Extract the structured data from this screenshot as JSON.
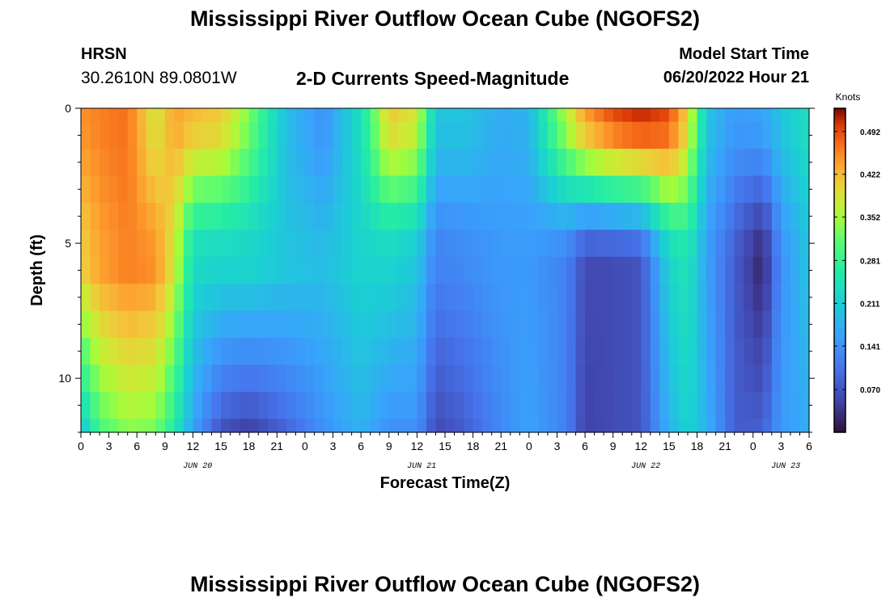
{
  "header": {
    "title": "Mississippi River Outflow Ocean Cube (NGOFS2)",
    "station_name": "HRSN",
    "station_coords": "30.2610N  89.0801W",
    "subtitle": "2-D Currents Speed-Magnitude",
    "model_start_label": "Model Start Time",
    "model_start_value": "06/20/2022 Hour 21"
  },
  "footer": {
    "title": "Mississippi River Outflow Ocean Cube (NGOFS2)"
  },
  "chart_data": {
    "type": "heatmap",
    "xlabel": "Forecast Time(Z)",
    "ylabel": "Depth (ft)",
    "x_range_hours": [
      0,
      78
    ],
    "x_tick_labels": [
      "0",
      "3",
      "6",
      "9",
      "12",
      "15",
      "18",
      "21",
      "0",
      "3",
      "6",
      "9",
      "12",
      "15",
      "18",
      "21",
      "0",
      "3",
      "6",
      "9",
      "12",
      "15",
      "18",
      "21",
      "0",
      "3",
      "6"
    ],
    "date_labels": [
      "JUN 20",
      "JUN 21",
      "JUN 22",
      "JUN 23"
    ],
    "date_label_hours": [
      12.5,
      36.5,
      60.5,
      75.5
    ],
    "y_range_ft": [
      0,
      12
    ],
    "y_tick_labels": [
      "0",
      "5",
      "10"
    ],
    "y_tick_values": [
      0,
      5,
      10
    ],
    "colorbar": {
      "unit": "Knots",
      "min": 0.0,
      "max": 0.53,
      "tick_labels": [
        "0.070",
        "0.141",
        "0.211",
        "0.281",
        "0.352",
        "0.422",
        "0.492"
      ],
      "tick_values": [
        0.07,
        0.141,
        0.211,
        0.281,
        0.352,
        0.422,
        0.492
      ]
    },
    "time_step_hours": 1,
    "depth_levels_ft": [
      0,
      1,
      2,
      3,
      4,
      5,
      6,
      7,
      8,
      9,
      10,
      11,
      12
    ],
    "profile_keyframes": {
      "hours": [
        0,
        2,
        5,
        8,
        10,
        12,
        15,
        18,
        22,
        26,
        30,
        33,
        36,
        38,
        41,
        45,
        48,
        52,
        54,
        57,
        60,
        63,
        65,
        67,
        70,
        73,
        75,
        78
      ],
      "surface": [
        0.45,
        0.46,
        0.47,
        0.38,
        0.44,
        0.42,
        0.41,
        0.33,
        0.19,
        0.14,
        0.24,
        0.41,
        0.38,
        0.2,
        0.2,
        0.17,
        0.18,
        0.36,
        0.44,
        0.49,
        0.51,
        0.49,
        0.4,
        0.2,
        0.15,
        0.16,
        0.2,
        0.24
      ],
      "mid": [
        0.4,
        0.44,
        0.46,
        0.45,
        0.38,
        0.23,
        0.22,
        0.22,
        0.2,
        0.19,
        0.22,
        0.22,
        0.2,
        0.12,
        0.13,
        0.15,
        0.15,
        0.12,
        0.06,
        0.06,
        0.07,
        0.22,
        0.25,
        0.16,
        0.08,
        0.02,
        0.14,
        0.2
      ],
      "bottom": [
        0.2,
        0.3,
        0.34,
        0.33,
        0.26,
        0.16,
        0.07,
        0.05,
        0.09,
        0.14,
        0.18,
        0.14,
        0.14,
        0.06,
        0.08,
        0.13,
        0.16,
        0.12,
        0.05,
        0.06,
        0.07,
        0.18,
        0.22,
        0.18,
        0.08,
        0.08,
        0.15,
        0.17
      ]
    }
  }
}
